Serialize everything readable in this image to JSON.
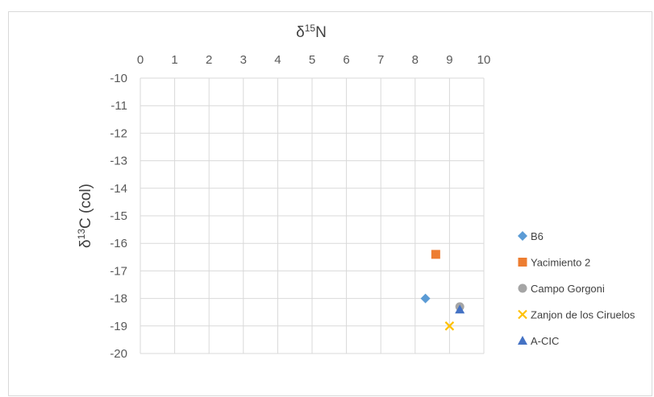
{
  "chart_data": {
    "type": "scatter",
    "x_axis": {
      "label_symbol": "δ",
      "label_sup": "15",
      "label_main": "N",
      "position": "top",
      "range": [
        0,
        10
      ],
      "ticks": [
        "0",
        "1",
        "2",
        "3",
        "4",
        "5",
        "6",
        "7",
        "8",
        "9",
        "10"
      ]
    },
    "y_axis": {
      "label_symbol": "δ",
      "label_sup": "13",
      "label_main": "C (col)",
      "range": [
        -20,
        -10
      ],
      "ticks": [
        "-10",
        "-11",
        "-12",
        "-13",
        "-14",
        "-15",
        "-16",
        "-17",
        "-18",
        "-19",
        "-20"
      ]
    },
    "grid": true,
    "legend_position": "right",
    "series": [
      {
        "name": "B6",
        "marker": "diamond",
        "color": "#5b9bd5",
        "points": [
          {
            "x": 8.3,
            "y": -18.0
          }
        ]
      },
      {
        "name": "Yacimiento 2",
        "marker": "square",
        "color": "#ed7d31",
        "points": [
          {
            "x": 8.6,
            "y": -16.4
          }
        ]
      },
      {
        "name": "Campo Gorgoni",
        "marker": "circle",
        "color": "#a5a5a5",
        "points": [
          {
            "x": 9.3,
            "y": -18.3
          }
        ]
      },
      {
        "name": "Zanjon de los Ciruelos",
        "marker": "x",
        "color": "#ffc000",
        "points": [
          {
            "x": 9.0,
            "y": -19.0
          }
        ]
      },
      {
        "name": "A-CIC",
        "marker": "triangle",
        "color": "#4472c4",
        "points": [
          {
            "x": 9.3,
            "y": -18.4
          }
        ]
      }
    ]
  }
}
